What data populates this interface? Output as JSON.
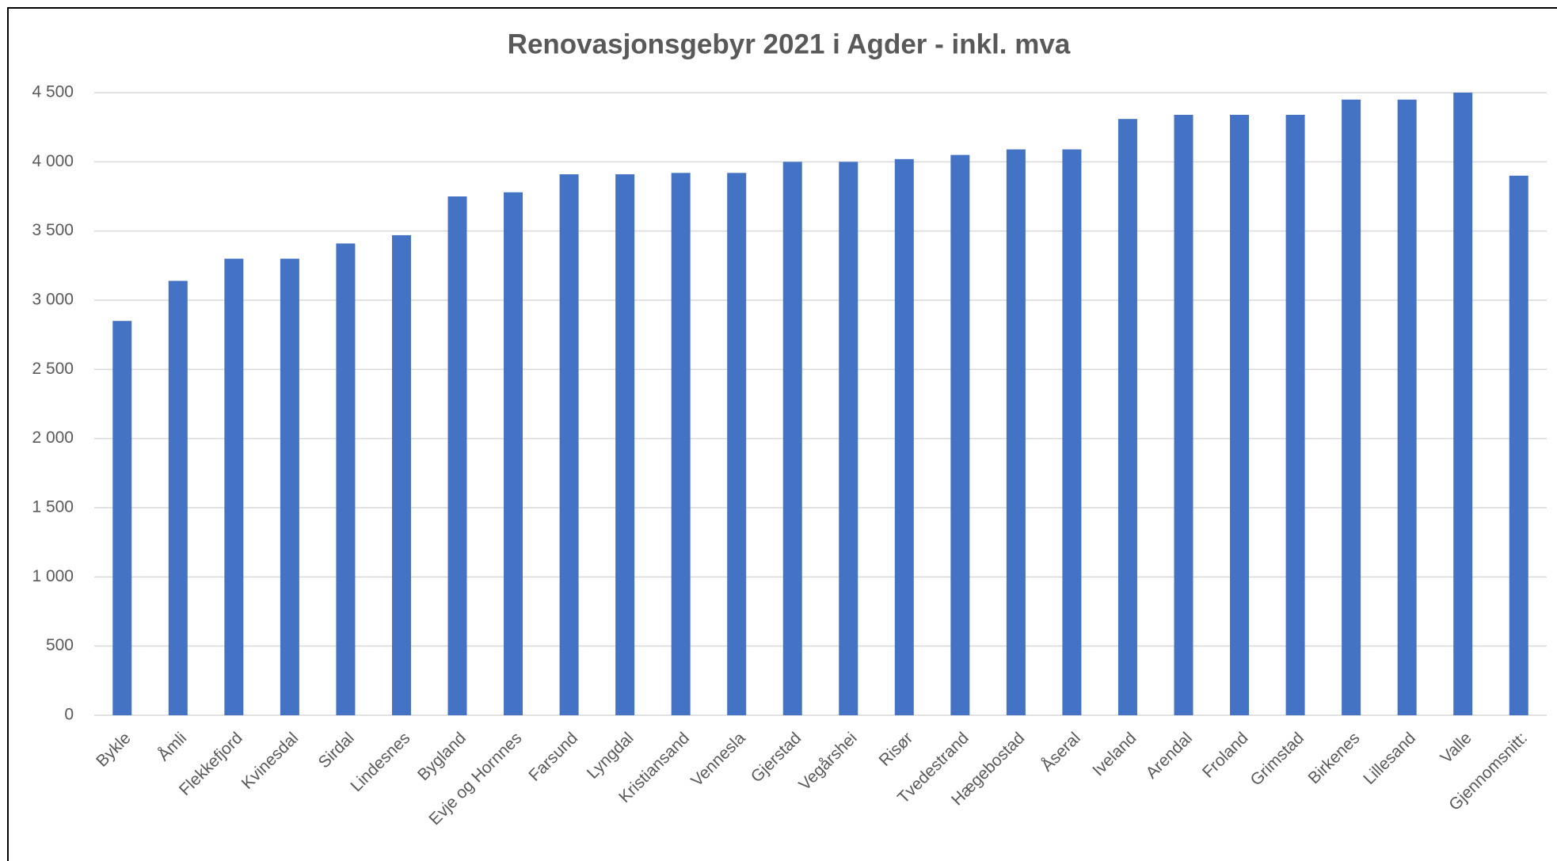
{
  "chart_data": {
    "type": "bar",
    "title": "Renovasjonsgebyr 2021 i Agder - inkl. mva",
    "categories": [
      "Bykle",
      "Åmli",
      "Flekkefjord",
      "Kvinesdal",
      "Sirdal",
      "Lindesnes",
      "Bygland",
      "Evje og Hornnes",
      "Farsund",
      "Lyngdal",
      "Kristiansand",
      "Vennesla",
      "Gjerstad",
      "Vegårshei",
      "Risør",
      "Tvedestrand",
      "Hægebostad",
      "Åseral",
      "Iveland",
      "Arendal",
      "Froland",
      "Grimstad",
      "Birkenes",
      "Lillesand",
      "Valle",
      "Gjennomsnitt:"
    ],
    "values": [
      2850,
      3140,
      3300,
      3300,
      3410,
      3470,
      3750,
      3780,
      3910,
      3910,
      3920,
      3920,
      4000,
      4000,
      4020,
      4050,
      4090,
      4090,
      4310,
      4340,
      4340,
      4340,
      4450,
      4450,
      4500,
      3900
    ],
    "color": "#4472c4",
    "ylim": [
      0,
      4500
    ],
    "yticks": [
      0,
      500,
      {
        "value": 1000,
        "label": "1 000"
      },
      {
        "value": 1500,
        "label": "1 500"
      },
      {
        "value": 2000,
        "label": "2 000"
      },
      {
        "value": 2500,
        "label": "2 500"
      },
      {
        "value": 3000,
        "label": "3 000"
      },
      {
        "value": 3500,
        "label": "3 500"
      },
      {
        "value": 4000,
        "label": "4 000"
      },
      {
        "value": 4500,
        "label": "4 500"
      }
    ],
    "grid": true
  }
}
